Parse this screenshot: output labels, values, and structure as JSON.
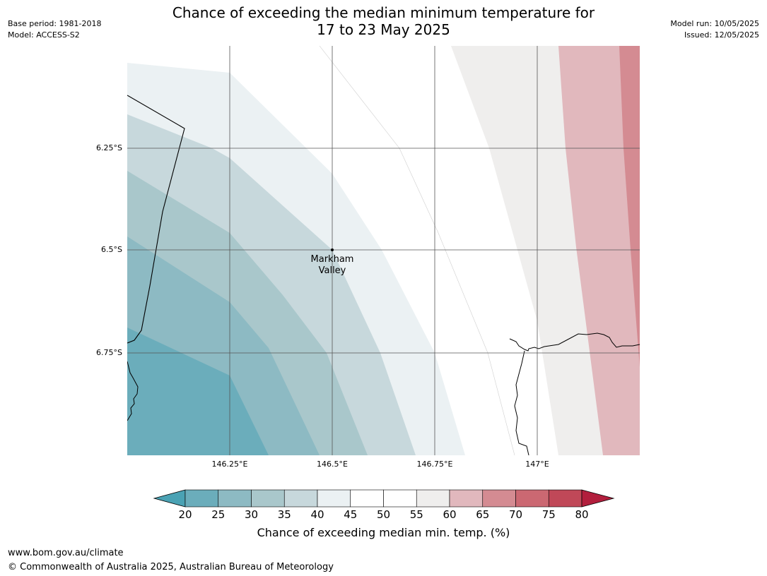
{
  "title": {
    "line1": "Chance of exceeding the median minimum temperature for",
    "line2": "17 to 23 May 2025"
  },
  "meta": {
    "base_period": "Base period: 1981-2018",
    "model": "Model: ACCESS-S2",
    "model_run": "Model run: 10/05/2025",
    "issued": "Issued: 12/05/2025"
  },
  "axes": {
    "lat_ticks": [
      "6.25°S",
      "6.5°S",
      "6.75°S"
    ],
    "lon_ticks": [
      "146.25°E",
      "146.5°E",
      "146.75°E",
      "147°E"
    ]
  },
  "place": {
    "name_line1": "Markham",
    "name_line2": "Valley",
    "lon": 146.5,
    "lat": -6.5
  },
  "colorbar": {
    "title": "Chance of exceeding median min. temp. (%)",
    "levels": [
      "20",
      "25",
      "30",
      "35",
      "40",
      "45",
      "50",
      "55",
      "60",
      "65",
      "70",
      "75",
      "80"
    ],
    "colors": [
      "#4aa2b4",
      "#6badbb",
      "#8dbac3",
      "#a9c7cb",
      "#c7d8dc",
      "#ebf1f3",
      "#ffffff",
      "#ffffff",
      "#efeeed",
      "#e1b8bd",
      "#d48b92",
      "#cb6872",
      "#c04858",
      "#b21f3d"
    ]
  },
  "footer": {
    "url": "www.bom.gov.au/climate",
    "copyright": "© Commonwealth of Australia 2025, Australian Bureau of Meteorology"
  }
}
